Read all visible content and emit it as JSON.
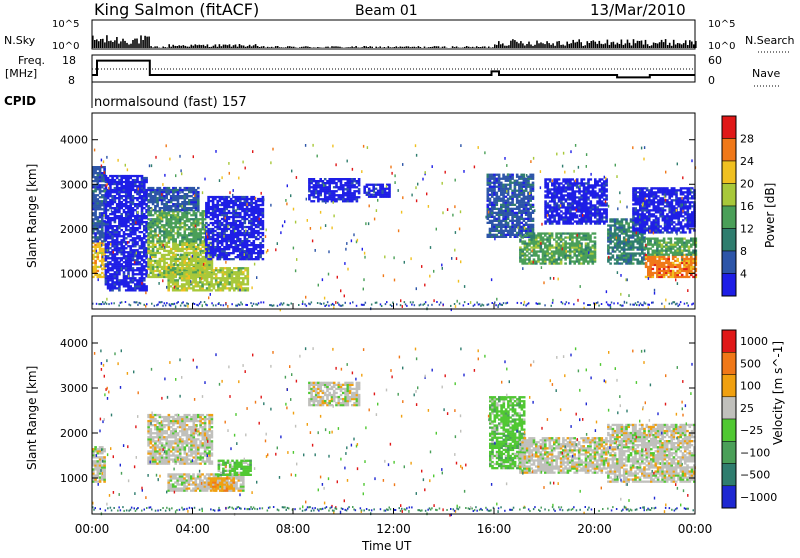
{
  "header": {
    "station": "King Salmon (fitACF)",
    "beam": "Beam 01",
    "date": "13/Mar/2010"
  },
  "top_panels": {
    "nsky_label": "N.Sky",
    "nsky_ticks": [
      "10^5",
      "10^0"
    ],
    "nsearch_label": "N.Search",
    "nsearch_ticks": [
      "10^5",
      "10^0"
    ],
    "freq_label": "Freq.",
    "freq_unit": "[MHz]",
    "freq_ticks": [
      "18",
      "8"
    ],
    "nave_label": "Nave",
    "nave_ticks": [
      "60",
      "0"
    ],
    "cpid_label": "CPID",
    "cpid_text": "normalsound (fast) 157",
    "freq_steps": [
      {
        "t0": 0.0,
        "t1": 0.2,
        "mhz": 10.5
      },
      {
        "t0": 0.2,
        "t1": 2.3,
        "mhz": 16.5
      },
      {
        "t0": 2.3,
        "t1": 15.9,
        "mhz": 10.5
      },
      {
        "t0": 15.9,
        "t1": 16.2,
        "mhz": 12.0
      },
      {
        "t0": 16.2,
        "t1": 20.9,
        "mhz": 10.5
      },
      {
        "t0": 20.9,
        "t1": 22.2,
        "mhz": 9.5
      },
      {
        "t0": 22.2,
        "t1": 24.0,
        "mhz": 10.5
      }
    ]
  },
  "chart_data": [
    {
      "type": "heatmap",
      "name": "power-panel",
      "ylabel": "Slant Range [km]",
      "ylim": [
        200,
        4600
      ],
      "xlim": [
        0,
        24
      ],
      "yticks": [
        "1000",
        "2000",
        "3000",
        "4000"
      ],
      "colorbar_label": "Power [dB]",
      "colorbar_ticks": [
        "4",
        "8",
        "12",
        "16",
        "20",
        "24",
        "28"
      ],
      "colorbar_range": [
        0,
        32
      ],
      "colors": [
        "#1e1ee6",
        "#2d55a8",
        "#2f7d6e",
        "#4a9f58",
        "#a8c83a",
        "#f0c020",
        "#f07818",
        "#e01818"
      ],
      "regions": [
        {
          "t0": 0.0,
          "t1": 0.5,
          "r0": 900,
          "r1": 1700,
          "level": 5
        },
        {
          "t0": 0.0,
          "t1": 0.5,
          "r0": 1700,
          "r1": 3400,
          "level": 1
        },
        {
          "t0": 0.5,
          "t1": 2.2,
          "r0": 600,
          "r1": 3200,
          "level": 0
        },
        {
          "t0": 2.2,
          "t1": 4.8,
          "r0": 900,
          "r1": 1700,
          "level": 4
        },
        {
          "t0": 2.2,
          "t1": 4.5,
          "r0": 1700,
          "r1": 2400,
          "level": 3
        },
        {
          "t0": 2.2,
          "t1": 4.2,
          "r0": 2400,
          "r1": 2900,
          "level": 1
        },
        {
          "t0": 3.0,
          "t1": 6.2,
          "r0": 600,
          "r1": 1100,
          "level": 4
        },
        {
          "t0": 4.5,
          "t1": 6.8,
          "r0": 1300,
          "r1": 2700,
          "level": 0
        },
        {
          "t0": 8.6,
          "t1": 10.6,
          "r0": 2600,
          "r1": 3100,
          "level": 0
        },
        {
          "t0": 10.8,
          "t1": 11.8,
          "r0": 2700,
          "r1": 3000,
          "level": 0
        },
        {
          "t0": 15.7,
          "t1": 17.5,
          "r0": 1800,
          "r1": 3200,
          "level": 1
        },
        {
          "t0": 17.0,
          "t1": 20.0,
          "r0": 1200,
          "r1": 1900,
          "level": 3
        },
        {
          "t0": 18.0,
          "t1": 20.5,
          "r0": 2100,
          "r1": 3100,
          "level": 0
        },
        {
          "t0": 20.5,
          "t1": 22.0,
          "r0": 1200,
          "r1": 2200,
          "level": 2
        },
        {
          "t0": 22.0,
          "t1": 24.0,
          "r0": 900,
          "r1": 1400,
          "level": 6
        },
        {
          "t0": 22.0,
          "t1": 24.0,
          "r0": 1400,
          "r1": 1800,
          "level": 3
        },
        {
          "t0": 21.5,
          "t1": 24.0,
          "r0": 1900,
          "r1": 2900,
          "level": 0
        }
      ]
    },
    {
      "type": "heatmap",
      "name": "velocity-panel",
      "ylabel": "Slant Range [km]",
      "ylim": [
        200,
        4600
      ],
      "xlim": [
        0,
        24
      ],
      "yticks": [
        "1000",
        "2000",
        "3000",
        "4000"
      ],
      "xticks": [
        "00:00",
        "04:00",
        "08:00",
        "12:00",
        "16:00",
        "20:00",
        "00:00"
      ],
      "xlabel": "Time UT",
      "colorbar_label": "Velocity [m s^-1]",
      "colorbar_ticks": [
        "1000",
        "500",
        "100",
        "25",
        "−25",
        "−100",
        "−500",
        "−1000"
      ],
      "colors": [
        "#1e28d2",
        "#2f7d6e",
        "#4a9f58",
        "#50c832",
        "#c0c0bc",
        "#f0a010",
        "#f07818",
        "#e01818"
      ],
      "regions": [
        {
          "t0": 0.0,
          "t1": 0.5,
          "r0": 900,
          "r1": 1700,
          "level": 4
        },
        {
          "t0": 2.2,
          "t1": 4.8,
          "r0": 1300,
          "r1": 2400,
          "level": 4
        },
        {
          "t0": 3.0,
          "t1": 6.0,
          "r0": 700,
          "r1": 1100,
          "level": 4
        },
        {
          "t0": 5.0,
          "t1": 6.3,
          "r0": 1050,
          "r1": 1400,
          "level": 3
        },
        {
          "t0": 4.6,
          "t1": 5.6,
          "r0": 700,
          "r1": 1000,
          "level": 5
        },
        {
          "t0": 8.6,
          "t1": 10.6,
          "r0": 2600,
          "r1": 3100,
          "level": 4
        },
        {
          "t0": 15.8,
          "t1": 17.2,
          "r0": 1200,
          "r1": 2800,
          "level": 3
        },
        {
          "t0": 17.0,
          "t1": 20.5,
          "r0": 1100,
          "r1": 1900,
          "level": 4
        },
        {
          "t0": 20.5,
          "t1": 24.0,
          "r0": 900,
          "r1": 2200,
          "level": 4
        }
      ]
    }
  ]
}
